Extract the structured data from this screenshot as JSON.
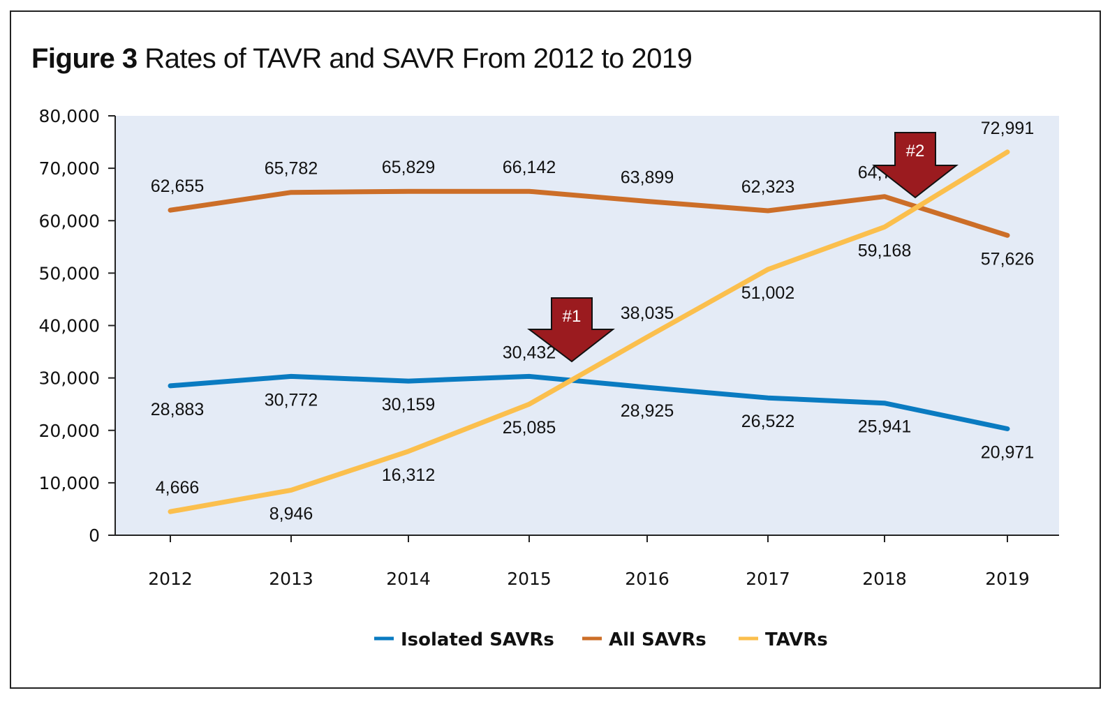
{
  "chart_data": {
    "type": "line",
    "title_bold": "Figure 3",
    "title_rest": "Rates of TAVR and SAVR From 2012 to 2019",
    "xlabel": "",
    "ylabel": "",
    "x": [
      "2012",
      "2013",
      "2014",
      "2015",
      "2016",
      "2017",
      "2018",
      "2019"
    ],
    "ylim": [
      0,
      80000
    ],
    "yticks": [
      0,
      10000,
      20000,
      30000,
      40000,
      50000,
      60000,
      70000,
      80000
    ],
    "ytick_labels": [
      "0",
      "10,000",
      "20,000",
      "30,000",
      "40,000",
      "50,000",
      "60,000",
      "70,000",
      "80,000"
    ],
    "grid": false,
    "legend_position": "bottom",
    "series": [
      {
        "name": "Isolated SAVRs",
        "color": "#0a7bc1",
        "values": [
          28883,
          30772,
          30159,
          30432,
          28925,
          26522,
          25941,
          20971
        ],
        "plotted_values": [
          28500,
          30300,
          29400,
          30300,
          28200,
          26200,
          25200,
          20300
        ],
        "labels": [
          "28,883",
          "30,772",
          "30,159",
          "30,432",
          "28,925",
          "26,522",
          "25,941",
          "20,971"
        ],
        "label_pos": [
          "below",
          "below",
          "below",
          "above",
          "below",
          "below",
          "below",
          "below"
        ]
      },
      {
        "name": "All SAVRs",
        "color": "#cc6e28",
        "values": [
          62655,
          65782,
          65829,
          66142,
          63899,
          62323,
          64705,
          57626
        ],
        "plotted_values": [
          62000,
          65400,
          65600,
          65600,
          63700,
          61900,
          64600,
          57200
        ],
        "labels": [
          "62,655",
          "65,782",
          "65,829",
          "66,142",
          "63,899",
          "62,323",
          "64,705",
          "57,626"
        ],
        "label_pos": [
          "above",
          "above",
          "above",
          "above",
          "above",
          "above",
          "above",
          "below"
        ]
      },
      {
        "name": "TAVRs",
        "color": "#fbbf4d",
        "values": [
          4666,
          8946,
          16312,
          25085,
          38035,
          51002,
          59168,
          72991
        ],
        "plotted_values": [
          4500,
          8600,
          16000,
          25000,
          37800,
          50700,
          58800,
          73100
        ],
        "labels": [
          "4,666",
          "8,946",
          "16,312",
          "25,085",
          "38,035",
          "51,002",
          "59,168",
          "72,991"
        ],
        "label_pos": [
          "above",
          "below",
          "below",
          "below",
          "above",
          "below",
          "below",
          "above"
        ]
      }
    ],
    "annotations": [
      {
        "label": "#1",
        "type": "down-arrow",
        "color": "#9b1b1f",
        "near_x": "2015-2016"
      },
      {
        "label": "#2",
        "type": "down-arrow",
        "color": "#9b1b1f",
        "near_x": "2018-2019"
      }
    ],
    "plot_background": "#e4ebf6"
  }
}
